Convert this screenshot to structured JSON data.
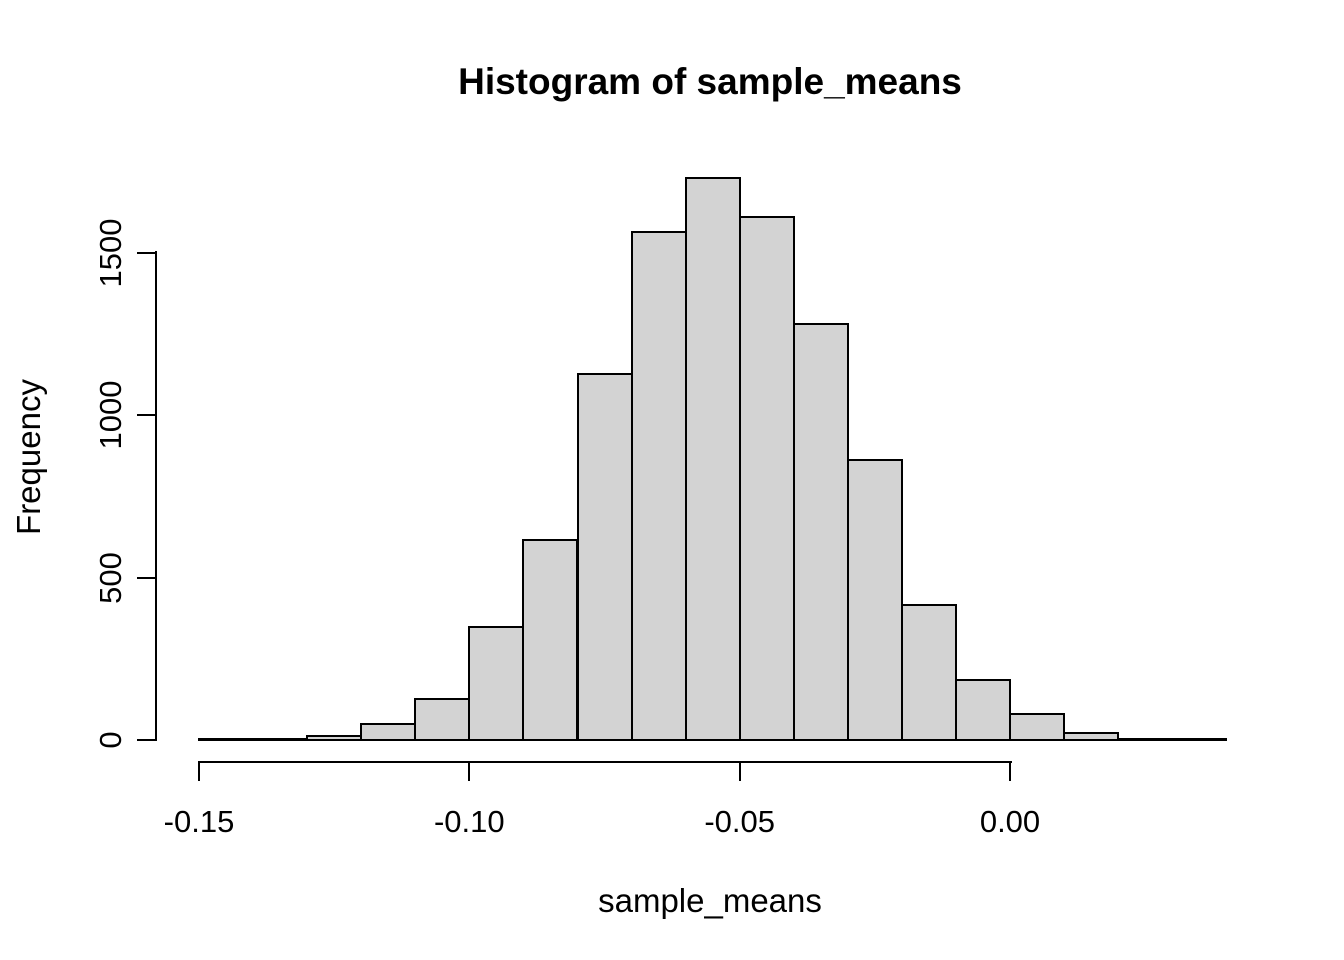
{
  "figure": {
    "title": "Histogram of sample_means",
    "xlabel": "sample_means",
    "ylabel": "Frequency"
  },
  "chart_data": {
    "type": "bar",
    "subtype": "histogram",
    "title": "Histogram of sample_means",
    "xlabel": "sample_means",
    "ylabel": "Frequency",
    "grid": false,
    "legend_position": "none",
    "background_color": "#FFFFFF",
    "bar_fill_color": "#D3D3D3",
    "bar_border_color": "#000000",
    "xlim": [
      -0.15,
      0.04
    ],
    "ylim": [
      0,
      1500
    ],
    "bin_width": 0.01,
    "bins": [
      {
        "from": -0.15,
        "to": -0.14,
        "count": 1
      },
      {
        "from": -0.14,
        "to": -0.13,
        "count": 3
      },
      {
        "from": -0.13,
        "to": -0.12,
        "count": 10
      },
      {
        "from": -0.12,
        "to": -0.11,
        "count": 45
      },
      {
        "from": -0.11,
        "to": -0.1,
        "count": 122
      },
      {
        "from": -0.1,
        "to": -0.09,
        "count": 344
      },
      {
        "from": -0.09,
        "to": -0.08,
        "count": 612
      },
      {
        "from": -0.08,
        "to": -0.07,
        "count": 1123
      },
      {
        "from": -0.07,
        "to": -0.06,
        "count": 1561
      },
      {
        "from": -0.06,
        "to": -0.05,
        "count": 1728
      },
      {
        "from": -0.05,
        "to": -0.04,
        "count": 1608
      },
      {
        "from": -0.04,
        "to": -0.03,
        "count": 1279
      },
      {
        "from": -0.03,
        "to": -0.02,
        "count": 861
      },
      {
        "from": -0.02,
        "to": -0.01,
        "count": 414
      },
      {
        "from": -0.01,
        "to": 0.0,
        "count": 183
      },
      {
        "from": 0.0,
        "to": 0.01,
        "count": 78
      },
      {
        "from": 0.01,
        "to": 0.02,
        "count": 20
      },
      {
        "from": 0.02,
        "to": 0.03,
        "count": 6
      },
      {
        "from": 0.03,
        "to": 0.04,
        "count": 2
      }
    ],
    "x_ticks": [
      {
        "value": -0.15,
        "label": "-0.15"
      },
      {
        "value": -0.1,
        "label": "-0.10"
      },
      {
        "value": -0.05,
        "label": "-0.05"
      },
      {
        "value": 0.0,
        "label": "0.00"
      }
    ],
    "y_ticks": [
      {
        "value": 0,
        "label": "0"
      },
      {
        "value": 500,
        "label": "500"
      },
      {
        "value": 1000,
        "label": "1000"
      },
      {
        "value": 1500,
        "label": "1500"
      }
    ]
  }
}
